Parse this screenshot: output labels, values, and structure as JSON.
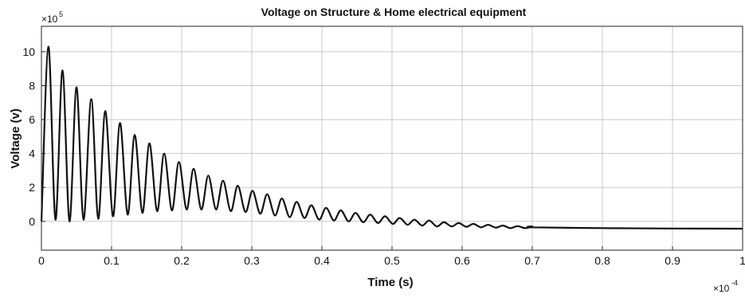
{
  "chart_data": {
    "type": "line",
    "title": "Voltage on Structure & Home electrical equipment",
    "xlabel": "Time (s)",
    "ylabel": "Voltage (v)",
    "x_multiplier": {
      "base": "×10",
      "exp": "-4"
    },
    "y_multiplier": {
      "base": "×10",
      "exp": "5"
    },
    "xlim": [
      0,
      1
    ],
    "ylim": [
      -1.7,
      11.5
    ],
    "x_ticks": [
      0,
      0.1,
      0.2,
      0.3,
      0.4,
      0.5,
      0.6,
      0.7,
      0.8,
      0.9,
      1
    ],
    "x_tick_labels": [
      "0",
      "0.1",
      "0.2",
      "0.3",
      "0.4",
      "0.5",
      "0.6",
      "0.7",
      "0.8",
      "0.9",
      "1"
    ],
    "y_ticks": [
      0,
      2,
      4,
      6,
      8,
      10
    ],
    "y_tick_labels": [
      "0",
      "2",
      "4",
      "6",
      "8",
      "10"
    ],
    "grid": true,
    "series": [
      {
        "color": "#111111",
        "peaks": [
          [
            0.01,
            10.3
          ],
          [
            0.03,
            8.9
          ],
          [
            0.05,
            7.9
          ],
          [
            0.071,
            7.2
          ],
          [
            0.091,
            6.5
          ],
          [
            0.112,
            5.8
          ],
          [
            0.133,
            5.1
          ],
          [
            0.154,
            4.6
          ],
          [
            0.175,
            4.0
          ],
          [
            0.196,
            3.5
          ],
          [
            0.217,
            3.1
          ],
          [
            0.238,
            2.7
          ],
          [
            0.259,
            2.4
          ],
          [
            0.28,
            2.1
          ],
          [
            0.301,
            1.8
          ],
          [
            0.322,
            1.6
          ],
          [
            0.343,
            1.35
          ],
          [
            0.364,
            1.15
          ],
          [
            0.385,
            0.95
          ],
          [
            0.406,
            0.8
          ],
          [
            0.427,
            0.65
          ],
          [
            0.448,
            0.5
          ],
          [
            0.469,
            0.4
          ],
          [
            0.49,
            0.3
          ],
          [
            0.511,
            0.2
          ],
          [
            0.532,
            0.1
          ],
          [
            0.553,
            0.05
          ],
          [
            0.574,
            -0.05
          ],
          [
            0.595,
            -0.1
          ],
          [
            0.616,
            -0.15
          ],
          [
            0.637,
            -0.2
          ],
          [
            0.658,
            -0.25
          ],
          [
            0.679,
            -0.28
          ],
          [
            0.7,
            -0.3
          ]
        ],
        "troughs": [
          [
            0.0,
            0.0
          ],
          [
            0.02,
            0.1
          ],
          [
            0.04,
            0.0
          ],
          [
            0.06,
            0.1
          ],
          [
            0.081,
            0.15
          ],
          [
            0.102,
            0.3
          ],
          [
            0.123,
            0.4
          ],
          [
            0.144,
            0.5
          ],
          [
            0.165,
            0.6
          ],
          [
            0.186,
            0.65
          ],
          [
            0.207,
            0.7
          ],
          [
            0.228,
            0.7
          ],
          [
            0.249,
            0.7
          ],
          [
            0.27,
            0.6
          ],
          [
            0.291,
            0.55
          ],
          [
            0.312,
            0.45
          ],
          [
            0.333,
            0.35
          ],
          [
            0.354,
            0.25
          ],
          [
            0.375,
            0.2
          ],
          [
            0.396,
            0.1
          ],
          [
            0.417,
            0.05
          ],
          [
            0.438,
            0.0
          ],
          [
            0.459,
            -0.05
          ],
          [
            0.48,
            -0.1
          ],
          [
            0.501,
            -0.15
          ],
          [
            0.522,
            -0.2
          ],
          [
            0.543,
            -0.25
          ],
          [
            0.564,
            -0.3
          ],
          [
            0.585,
            -0.3
          ],
          [
            0.606,
            -0.32
          ],
          [
            0.627,
            -0.35
          ],
          [
            0.648,
            -0.37
          ],
          [
            0.669,
            -0.4
          ],
          [
            0.69,
            -0.4
          ]
        ],
        "tail": [
          [
            0.7,
            -0.35
          ],
          [
            0.8,
            -0.4
          ],
          [
            0.9,
            -0.42
          ],
          [
            1.0,
            -0.43
          ]
        ]
      }
    ]
  }
}
